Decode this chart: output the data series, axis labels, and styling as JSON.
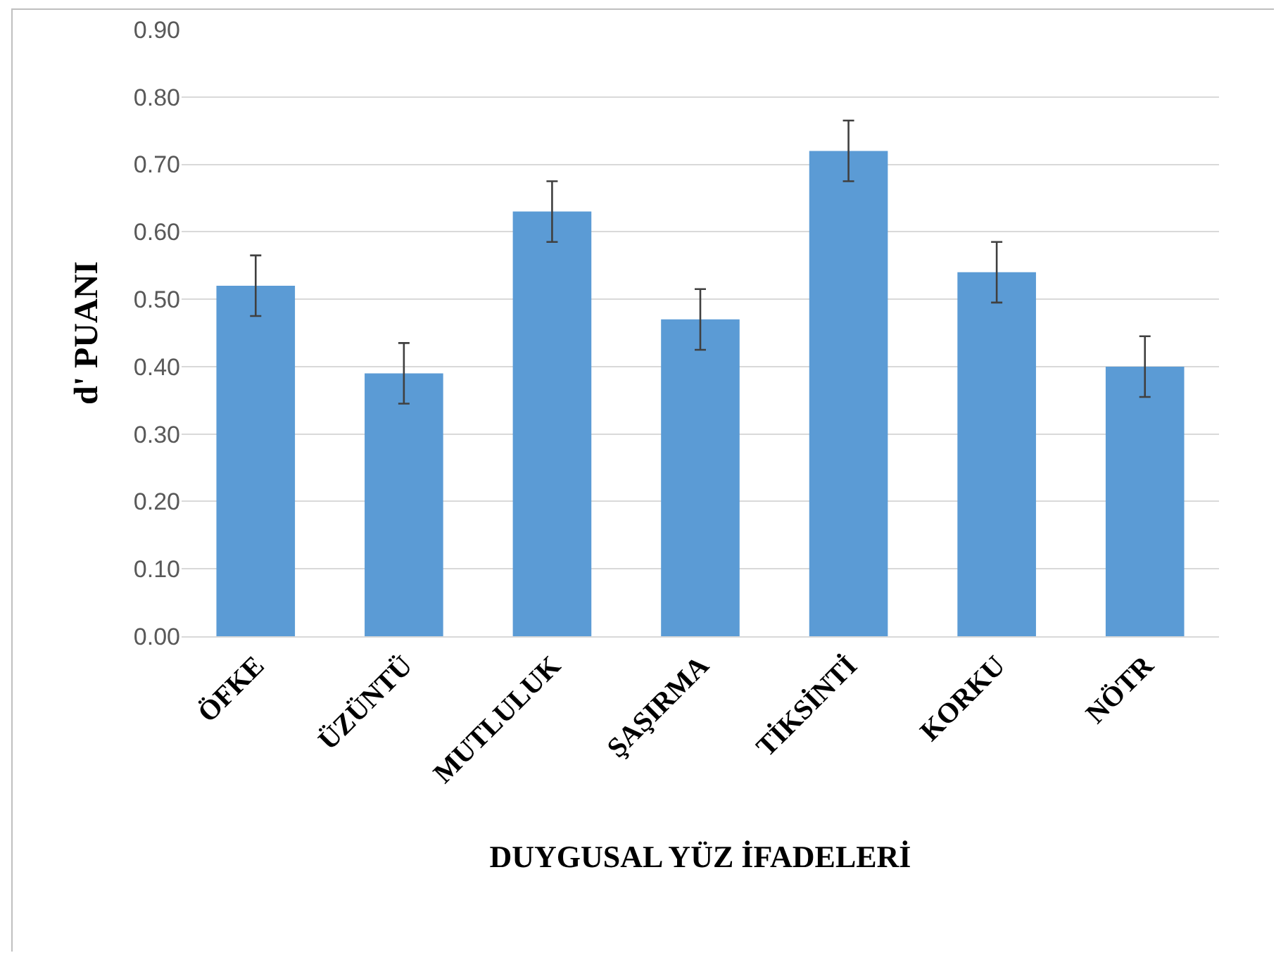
{
  "chart_data": {
    "type": "bar",
    "xlabel": "DUYGUSAL YÜZ İFADELERİ",
    "ylabel": "d' PUANI",
    "categories": [
      "ÖFKE",
      "ÜZÜNTÜ",
      "MUTLULUK",
      "ŞAŞIRMA",
      "TİKSİNTİ",
      "KORKU",
      "NÖTR"
    ],
    "values": [
      0.52,
      0.39,
      0.63,
      0.47,
      0.72,
      0.54,
      0.4
    ],
    "errors": [
      0.045,
      0.045,
      0.045,
      0.045,
      0.045,
      0.045,
      0.045
    ],
    "color": "#5b9bd5",
    "ylim": [
      0,
      0.9
    ],
    "yticks": [
      {
        "value": 0,
        "label": "0.00"
      },
      {
        "value": 0.1,
        "label": "0.10"
      },
      {
        "value": 0.2,
        "label": "0.20"
      },
      {
        "value": 0.3,
        "label": "0.30"
      },
      {
        "value": 0.4,
        "label": "0.40"
      },
      {
        "value": 0.5,
        "label": "0.50"
      },
      {
        "value": 0.6,
        "label": "0.60"
      },
      {
        "value": 0.7,
        "label": "0.70"
      },
      {
        "value": 0.8,
        "label": "0.80"
      },
      {
        "value": 0.9,
        "label": "0.90"
      }
    ],
    "grid": "y"
  }
}
